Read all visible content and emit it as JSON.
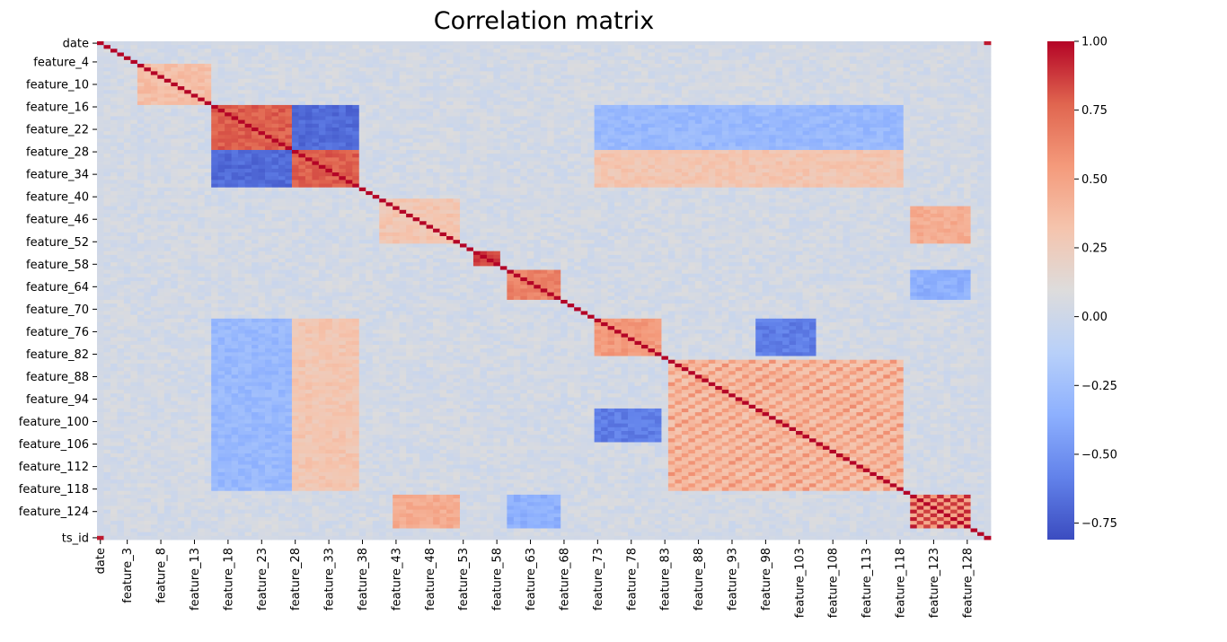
{
  "chart_data": {
    "type": "heatmap",
    "title": "Correlation matrix",
    "colormap": "coolwarm",
    "y_tick_labels": [
      "date",
      "feature_4",
      "feature_10",
      "feature_16",
      "feature_22",
      "feature_28",
      "feature_34",
      "feature_40",
      "feature_46",
      "feature_52",
      "feature_58",
      "feature_64",
      "feature_70",
      "feature_76",
      "feature_82",
      "feature_88",
      "feature_94",
      "feature_100",
      "feature_106",
      "feature_112",
      "feature_118",
      "feature_124",
      "ts_id"
    ],
    "x_tick_labels": [
      "date",
      "feature_3",
      "feature_8",
      "feature_13",
      "feature_18",
      "feature_23",
      "feature_28",
      "feature_33",
      "feature_38",
      "feature_43",
      "feature_48",
      "feature_53",
      "feature_58",
      "feature_63",
      "feature_68",
      "feature_73",
      "feature_78",
      "feature_83",
      "feature_88",
      "feature_93",
      "feature_98",
      "feature_103",
      "feature_108",
      "feature_113",
      "feature_118",
      "feature_123",
      "feature_128"
    ],
    "colorbar": {
      "tick_labels": [
        "1.00",
        "0.75",
        "0.50",
        "0.25",
        "0.00",
        "−0.25",
        "−0.50",
        "−0.75"
      ],
      "tick_values": [
        1.0,
        0.75,
        0.5,
        0.25,
        0.0,
        -0.25,
        -0.5,
        -0.75
      ],
      "range": [
        -0.81,
        1.0
      ],
      "colors": [
        "#3b4cc0",
        "#6282ea",
        "#8db0fe",
        "#b8d0f9",
        "#dddcdc",
        "#f5c4ad",
        "#f49a7b",
        "#e0654f",
        "#b40426"
      ]
    },
    "block_correlations": [
      {
        "rows": "feature_16–feature_27 × feature_16–feature_27",
        "value": 0.8
      },
      {
        "rows": "feature_28–feature_37 × feature_28–feature_37",
        "value": 0.8
      },
      {
        "rows": "feature_16–feature_27 × feature_28–feature_37",
        "value": -0.7
      },
      {
        "rows": "feature_73–feature_82 × feature_73–feature_82",
        "value": 0.55
      },
      {
        "rows": "feature_84–feature_118 × feature_84–feature_118",
        "value": 0.45
      },
      {
        "rows": "feature_120–feature_128 × feature_120–feature_128",
        "value": 0.85
      },
      {
        "rows": "feature_55–feature_58 × feature_55–feature_58",
        "value": 0.85
      },
      {
        "rows": "feature_60–feature_67 × feature_60–feature_67",
        "value": 0.7
      },
      {
        "rows": "feature_73–feature_82 × feature_97–feature_105",
        "value": -0.6
      }
    ]
  }
}
